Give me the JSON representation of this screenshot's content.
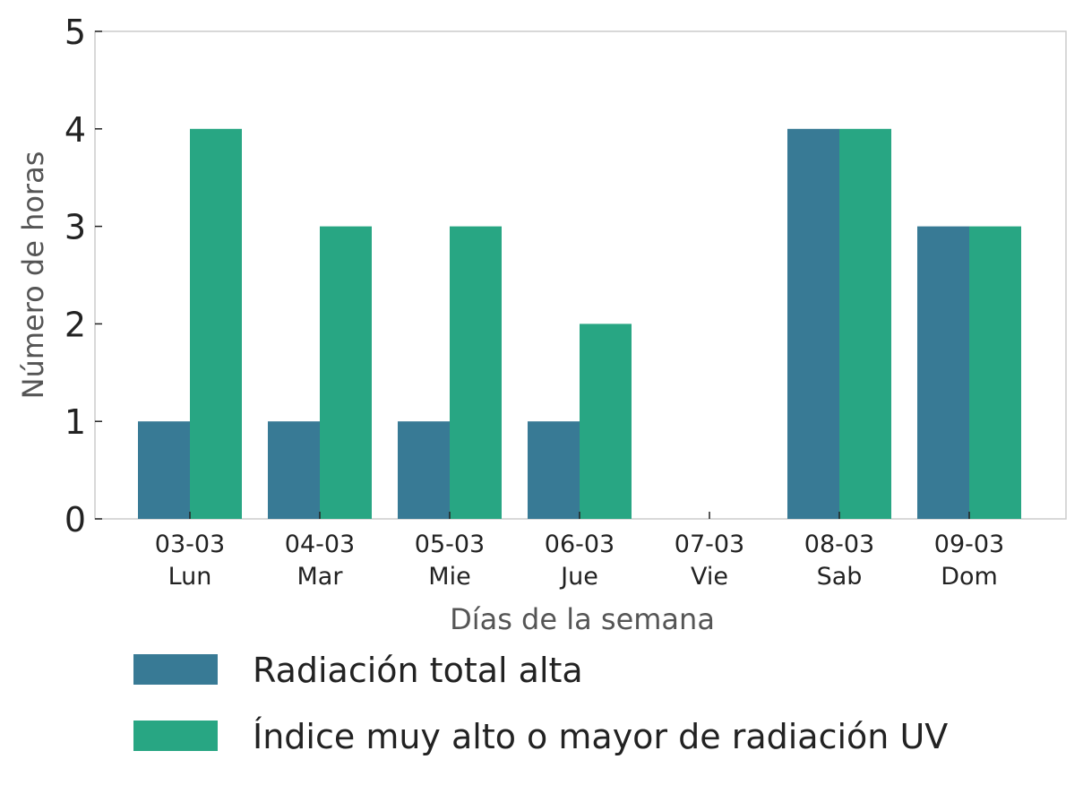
{
  "chart_data": {
    "type": "bar",
    "categories": [
      "03-03\nLun",
      "04-03\nMar",
      "05-03\nMie",
      "06-03\nJue",
      "07-03\nVie",
      "08-03\nSab",
      "09-03\nDom"
    ],
    "series": [
      {
        "name": "Radiación total alta",
        "values": [
          1,
          1,
          1,
          1,
          0,
          4,
          3
        ],
        "color": "#387a95"
      },
      {
        "name": "Índice muy alto o mayor de radiación UV",
        "values": [
          4,
          3,
          3,
          2,
          0,
          4,
          3
        ],
        "color": "#28a683"
      }
    ],
    "title": "",
    "xlabel": "Días de la semana",
    "ylabel": "Número de horas",
    "ylim": [
      0,
      5
    ],
    "yticks": [
      0,
      1,
      2,
      3,
      4,
      5
    ],
    "grid": false,
    "legend_position": "bottom"
  }
}
